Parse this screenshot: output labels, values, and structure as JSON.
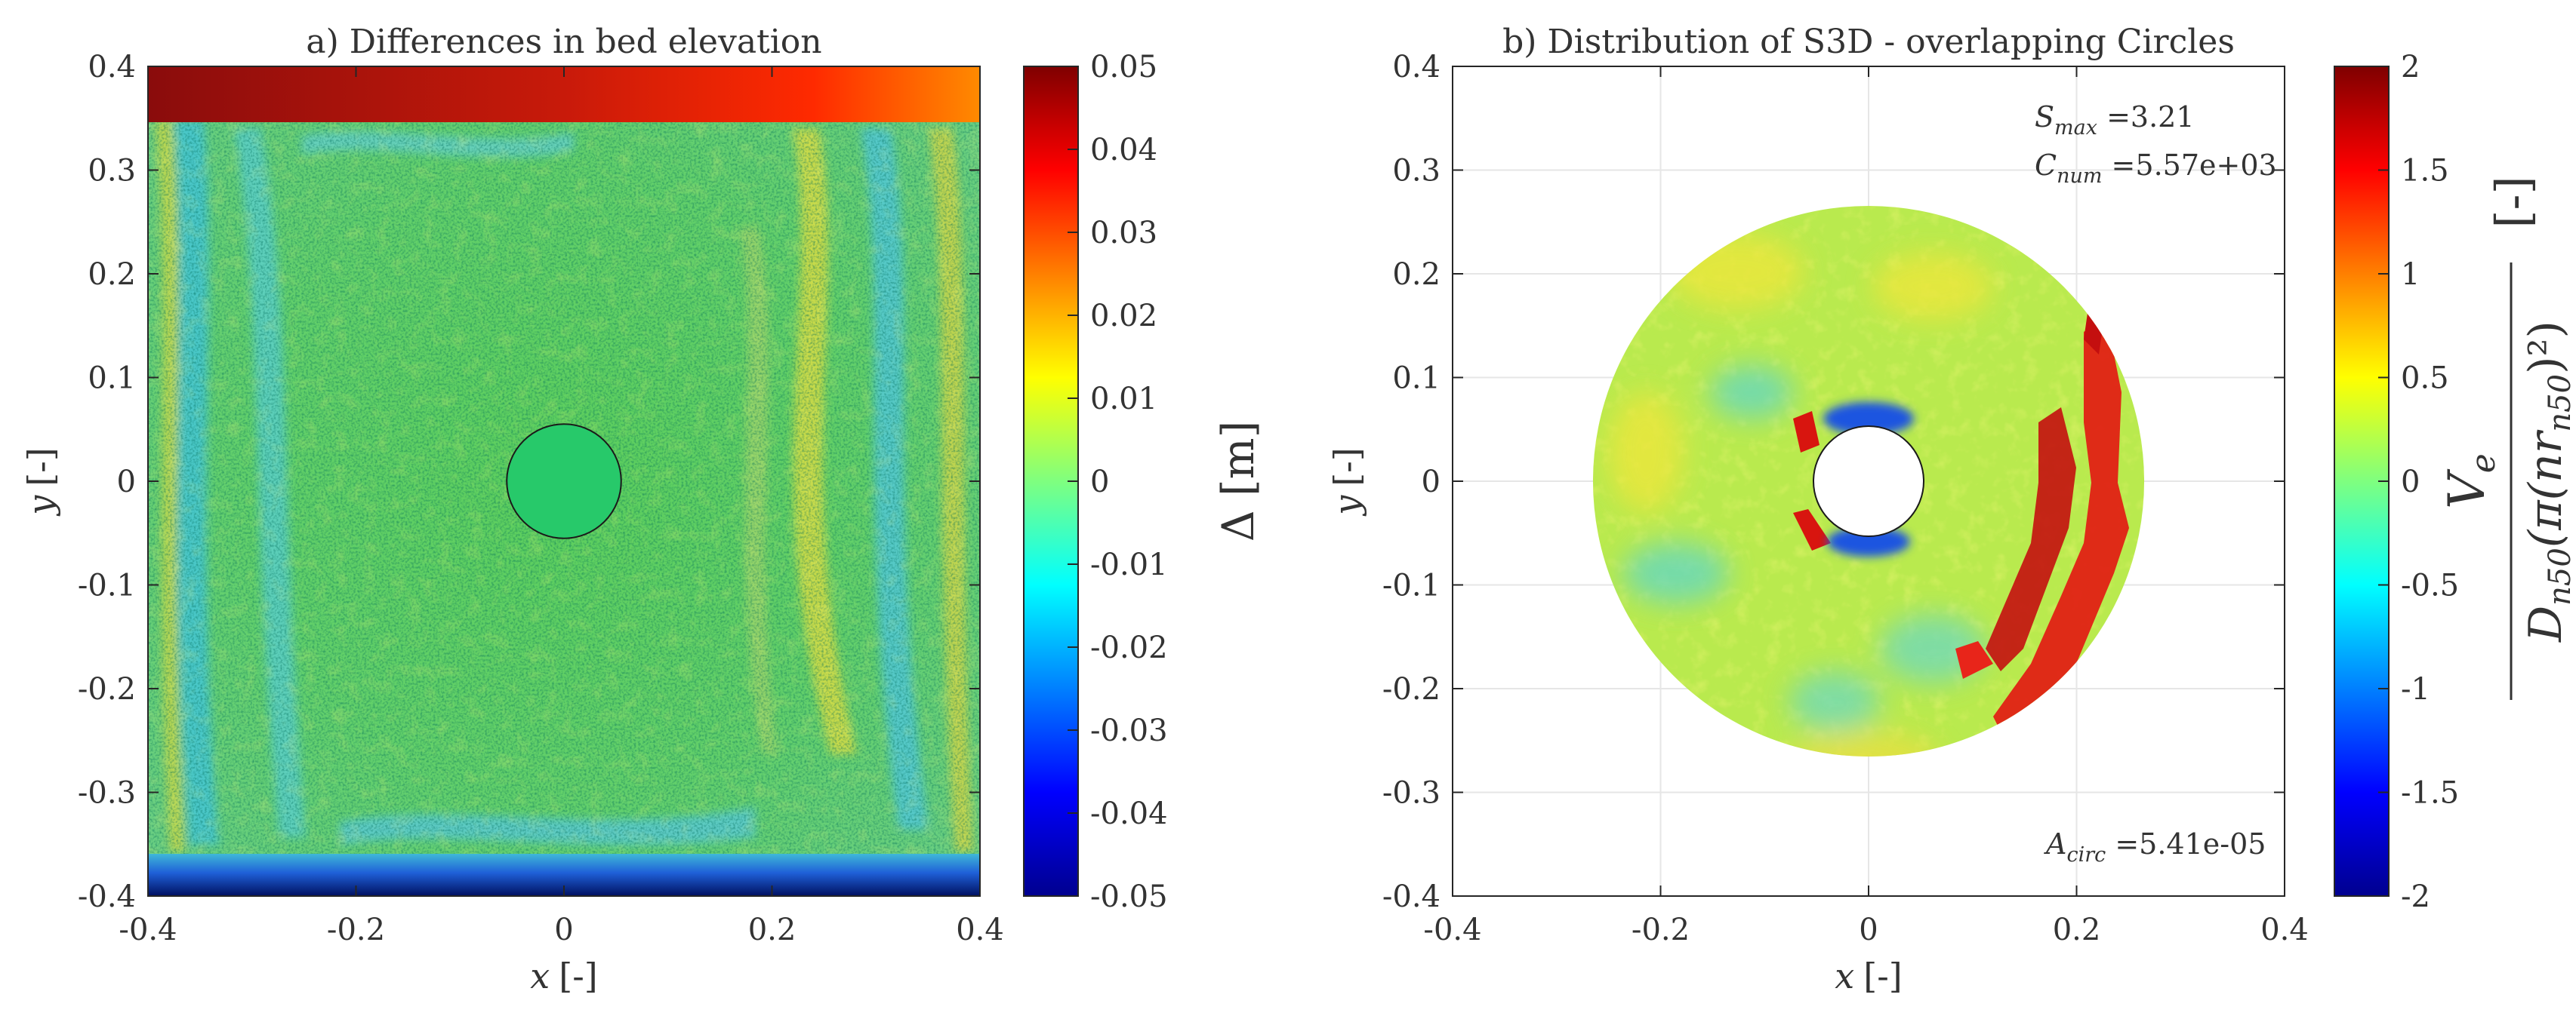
{
  "chart_data": [
    {
      "type": "heatmap",
      "panel": "a",
      "title": "a) Differences in bed elevation",
      "xlabel": "x",
      "xlabel_unit": "[-]",
      "ylabel": "y",
      "ylabel_unit": "[-]",
      "xlim": [
        -0.4,
        0.4
      ],
      "ylim": [
        -0.4,
        0.4
      ],
      "xticks": [
        "-0.4",
        "-0.2",
        "0",
        "0.2",
        "0.4"
      ],
      "yticks": [
        "0.4",
        "0.3",
        "0.2",
        "0.1",
        "0",
        "-0.1",
        "-0.2",
        "-0.3",
        "-0.4"
      ],
      "pile_radius": 0.055,
      "colorbar": {
        "label": "Δ [m]",
        "range": [
          -0.05,
          0.05
        ],
        "ticks": [
          "0.05",
          "0.04",
          "0.03",
          "0.02",
          "0.01",
          "0",
          "-0.01",
          "-0.02",
          "-0.03",
          "-0.04",
          "-0.05"
        ],
        "colormap": "jet"
      }
    },
    {
      "type": "heatmap",
      "panel": "b",
      "title": "b) Distribution of S3D - overlapping Circles",
      "xlabel": "x",
      "xlabel_unit": "[-]",
      "ylabel": "y",
      "ylabel_unit": "[-]",
      "xlim": [
        -0.4,
        0.4
      ],
      "ylim": [
        -0.4,
        0.4
      ],
      "xticks": [
        "-0.4",
        "-0.2",
        "0",
        "0.2",
        "0.4"
      ],
      "yticks": [
        "0.4",
        "0.3",
        "0.2",
        "0.1",
        "0",
        "-0.1",
        "-0.2",
        "-0.3",
        "-0.4"
      ],
      "grid": true,
      "outer_radius": 0.265,
      "inner_radius": 0.053,
      "annotations": {
        "smax": {
          "symbol": "S",
          "sub": "max",
          "value": " =3.21"
        },
        "cnum": {
          "symbol": "C",
          "sub": "num",
          "value": " =5.57e+03"
        },
        "acirc": {
          "symbol": "A",
          "sub": "circ",
          "value": " =5.41e-05"
        }
      },
      "colorbar": {
        "label_unit": "[-]",
        "label_formula": {
          "numerator": "V",
          "numerator_sub": "e",
          "denominator": "D",
          "denominator_sub": "n50",
          "denominator_rest": "(π(nr",
          "denominator_rest_sub": "n50",
          "denominator_tail": ")²)"
        },
        "range": [
          -2,
          2
        ],
        "ticks": [
          "2",
          "1.5",
          "1",
          "0.5",
          "0",
          "-0.5",
          "-1",
          "-1.5",
          "-2"
        ],
        "colormap": "jet"
      }
    }
  ],
  "colors": {
    "text": "#333333",
    "axis": "#262626",
    "grid": "#e6e6e6",
    "pile": "#27c96a"
  }
}
